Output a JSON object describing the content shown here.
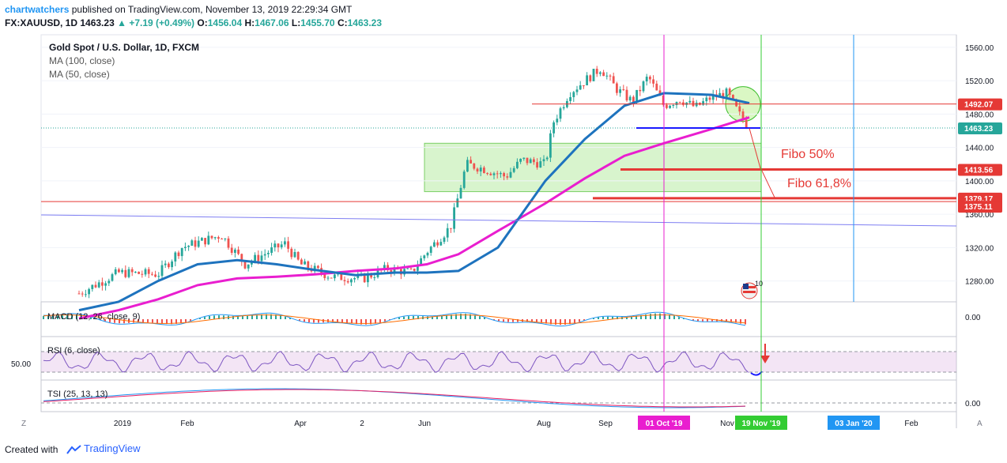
{
  "header": {
    "author": "chartwatchers",
    "published": "published on TradingView.com, November 13, 2019 22:29:34 GMT",
    "symbol": "FX:XAUUSD, 1D",
    "last": "1463.23",
    "change": "+7.19 (+0.49%)",
    "open": "1456.04",
    "high": "1467.06",
    "low": "1455.70",
    "close": "1463.23",
    "open_label": "O:",
    "high_label": "H:",
    "low_label": "L:",
    "close_label": "C:"
  },
  "legend": {
    "title": "Gold Spot / U.S. Dollar, 1D, FXCM",
    "ma100": "MA (100, close)",
    "ma50": "MA (50, close)"
  },
  "annotations": {
    "fibo50": "Fibo 50%",
    "fibo618": "Fibo 61,8%",
    "flag_badge": "10"
  },
  "indicators": {
    "macd": "MACD (12, 26, close, 9)",
    "rsi": "RSI (6, close)",
    "tsi": "TSI (25, 13, 13)",
    "macd_tick": "0.00",
    "rsi_tick": "50.00",
    "tsi_tick": "0.00"
  },
  "x_axis": {
    "labels": [
      "2019",
      "Feb",
      "Apr",
      "2",
      "Jun",
      "Aug",
      "Sep",
      "Nov",
      "Feb"
    ],
    "badges": [
      {
        "text": "01 Oct '19",
        "color": "#e91ecf"
      },
      {
        "text": "19 Nov '19",
        "color": "#33cc33"
      },
      {
        "text": "03 Jan '20",
        "color": "#2196f3"
      }
    ],
    "left_button": "Z",
    "right_button": "A"
  },
  "price_axis": {
    "ticks": [
      "1560.00",
      "1520.00",
      "1480.00",
      "1440.00",
      "1400.00",
      "1360.00",
      "1320.00",
      "1280.00"
    ],
    "badges": [
      {
        "text": "1492.07",
        "color": "#e53935"
      },
      {
        "text": "1463.23",
        "color": "#26a69a"
      },
      {
        "text": "1413.56",
        "color": "#e53935"
      },
      {
        "text": "1379.17",
        "color": "#e53935"
      },
      {
        "text": "1375.11",
        "color": "#e53935"
      }
    ]
  },
  "footer": {
    "created": "Created with",
    "brand": "TradingView"
  },
  "colors": {
    "up": "#26a69a",
    "down": "#ef5350",
    "ma100": "#e91ecf",
    "ma50": "#1e73be",
    "zone": "#c8f0b8",
    "hline_red": "#e53935",
    "vline_magenta": "#e91ecf",
    "vline_green": "#33cc33",
    "vline_blue": "#2196f3"
  },
  "chart_data": {
    "type": "candlestick",
    "symbol": "FX:XAUUSD",
    "timeframe": "1D",
    "y_axis_range": [
      1255,
      1575
    ],
    "lines": {
      "ma50_levels": [
        1245,
        1255,
        1280,
        1300,
        1305,
        1300,
        1293,
        1287,
        1290,
        1290,
        1292,
        1320,
        1400,
        1450,
        1490,
        1505,
        1503,
        1493
      ],
      "ma100_levels": [
        1235,
        1245,
        1258,
        1275,
        1283,
        1285,
        1288,
        1292,
        1295,
        1300,
        1312,
        1340,
        1373,
        1403,
        1430,
        1445,
        1462,
        1476
      ]
    },
    "horizontal_levels": [
      1492.07,
      1463.23,
      1413.56,
      1379.17,
      1375.11
    ],
    "fib_levels": {
      "Fibo 50%": 1413.56,
      "Fibo 61,8%": 1379.17
    },
    "vertical_markers": [
      "01 Oct '19",
      "19 Nov '19",
      "03 Jan '20"
    ],
    "last_price": 1463.23
  }
}
